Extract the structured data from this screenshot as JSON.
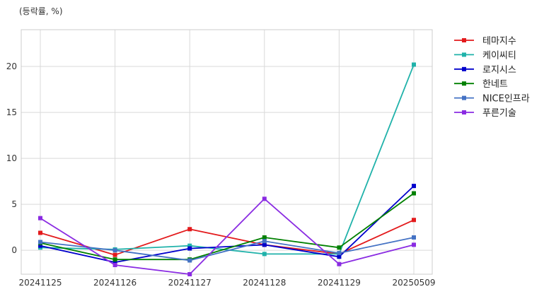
{
  "chart_data": {
    "type": "line",
    "unit_label": "(등락률, %)",
    "categories": [
      "20241125",
      "20241126",
      "20241127",
      "20241128",
      "20241129",
      "20250509"
    ],
    "ylim": [
      -2.6,
      24
    ],
    "yticks": [
      0,
      5,
      10,
      15,
      20
    ],
    "grid": true,
    "legend_position": "right-outside-top",
    "marker": "square",
    "series": [
      {
        "name": "테마지수",
        "color": "#e31a1c",
        "values": [
          1.9,
          -0.5,
          2.3,
          0.6,
          -0.4,
          3.3
        ]
      },
      {
        "name": "케이씨티",
        "color": "#20b2aa",
        "values": [
          0.3,
          0.1,
          0.5,
          -0.4,
          -0.4,
          20.2
        ]
      },
      {
        "name": "로지시스",
        "color": "#0000cc",
        "values": [
          0.5,
          -1.3,
          0.2,
          0.6,
          -0.7,
          7.0
        ]
      },
      {
        "name": "한네트",
        "color": "#008000",
        "values": [
          0.8,
          -1.0,
          -1.0,
          1.4,
          0.3,
          6.2
        ]
      },
      {
        "name": "NICE인프라",
        "color": "#4472c4",
        "values": [
          0.9,
          0.0,
          -1.1,
          1.0,
          -0.3,
          1.4
        ]
      },
      {
        "name": "푸른기술",
        "color": "#8a2be2",
        "values": [
          3.5,
          -1.6,
          -2.6,
          5.6,
          -1.5,
          0.6
        ]
      }
    ]
  }
}
